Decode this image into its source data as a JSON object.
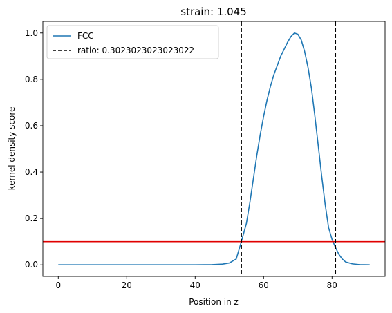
{
  "chart_data": {
    "type": "line",
    "title": "strain: 1.045",
    "xlabel": "Position in z",
    "ylabel": "kernel density score",
    "xlim": [
      -4.5,
      95.5
    ],
    "ylim": [
      -0.05,
      1.05
    ],
    "xticks": [
      0,
      20,
      40,
      60,
      80
    ],
    "yticks": [
      0.0,
      0.2,
      0.4,
      0.6,
      0.8,
      1.0
    ],
    "xtick_labels": [
      "0",
      "20",
      "40",
      "60",
      "80"
    ],
    "ytick_labels": [
      "0.0",
      "0.2",
      "0.4",
      "0.6",
      "0.8",
      "1.0"
    ],
    "grid": false,
    "legend_position": "top-left",
    "series": [
      {
        "name": "FCC",
        "color": "#1f77b4",
        "x": [
          0,
          10,
          20,
          30,
          40,
          45,
          48,
          50,
          52,
          53.5,
          55,
          56,
          57,
          58,
          59,
          60,
          61,
          62,
          63,
          64,
          65,
          66,
          67,
          68,
          69,
          70,
          71,
          72,
          73,
          74,
          75,
          76,
          77,
          78,
          79,
          80,
          81,
          82,
          83,
          84,
          86,
          88,
          91
        ],
        "values": [
          0,
          0,
          0,
          0,
          0,
          0.001,
          0.003,
          0.008,
          0.025,
          0.1,
          0.18,
          0.27,
          0.37,
          0.47,
          0.56,
          0.64,
          0.71,
          0.77,
          0.82,
          0.86,
          0.9,
          0.93,
          0.96,
          0.985,
          1.0,
          0.995,
          0.97,
          0.92,
          0.85,
          0.76,
          0.64,
          0.51,
          0.38,
          0.26,
          0.16,
          0.11,
          0.075,
          0.045,
          0.025,
          0.012,
          0.004,
          0.001,
          0
        ]
      }
    ],
    "vlines": [
      {
        "name": "ratio: 0.3023023023023022",
        "x": 53.5,
        "color": "#000000",
        "style": "dashed"
      },
      {
        "x": 81.0,
        "color": "#000000",
        "style": "dashed"
      }
    ],
    "hlines": [
      {
        "y": 0.1,
        "color": "#e00000",
        "style": "solid"
      }
    ],
    "legend": [
      {
        "label": "FCC",
        "color": "#1f77b4",
        "style": "solid"
      },
      {
        "label": "ratio: 0.3023023023023022",
        "color": "#000000",
        "style": "dashed"
      }
    ]
  }
}
